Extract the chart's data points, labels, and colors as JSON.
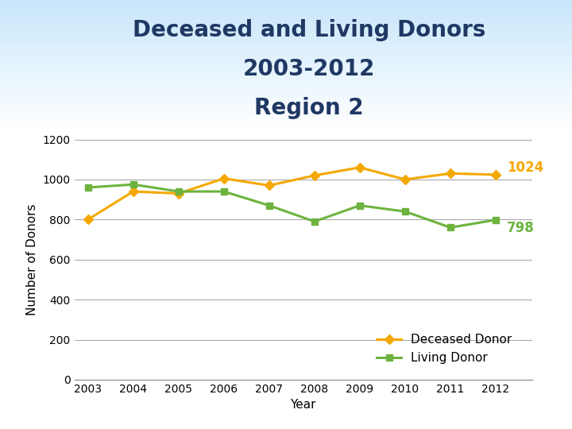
{
  "title_line1": "Deceased and Living Donors",
  "title_line2": "2003-2012",
  "title_line3": "Region 2",
  "ylabel": "Number of Donors",
  "xlabel": "Year",
  "years": [
    2003,
    2004,
    2005,
    2006,
    2007,
    2008,
    2009,
    2010,
    2011,
    2012
  ],
  "deceased_donor": [
    800,
    940,
    930,
    1005,
    970,
    1020,
    1060,
    1000,
    1030,
    1024
  ],
  "living_donor": [
    960,
    975,
    940,
    940,
    870,
    790,
    870,
    840,
    760,
    798
  ],
  "deceased_color": "#F5A800",
  "living_color": "#6DB33F",
  "deceased_label": "Deceased Donor",
  "living_label": "Living Donor",
  "ylim": [
    0,
    1200
  ],
  "yticks": [
    0,
    200,
    400,
    600,
    800,
    1000,
    1200
  ],
  "title_color": "#1F3864",
  "annotation_deceased": "1024",
  "annotation_living": "798",
  "title_fontsize": 20,
  "axis_label_fontsize": 11,
  "tick_fontsize": 10,
  "legend_fontsize": 11
}
